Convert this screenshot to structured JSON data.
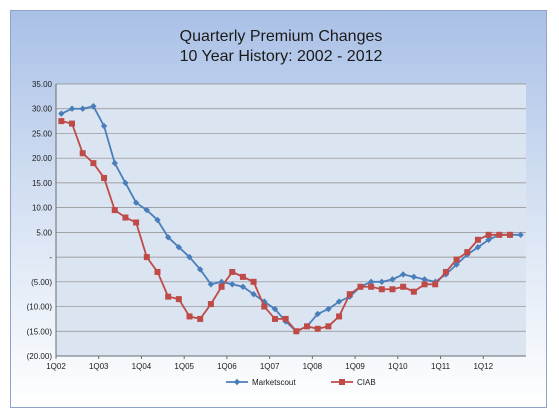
{
  "chart_data": {
    "type": "line",
    "title": "Quarterly Premium Changes",
    "subtitle": "10 Year History: 2002 - 2012",
    "xlabel": "",
    "ylabel": "",
    "ylim": [
      -20,
      35
    ],
    "yticks": [
      35,
      30,
      25,
      20,
      15,
      10,
      5,
      0,
      -5,
      -10,
      -15,
      -20
    ],
    "ytick_labels": [
      "35.00",
      "30.00",
      "25.00",
      "20.00",
      "15.00",
      "10.00",
      "5.00",
      "-",
      "(5.00)",
      "(10.00)",
      "(15.00)",
      "(20.00)"
    ],
    "xticks": [
      0,
      4,
      8,
      12,
      16,
      20,
      24,
      28,
      32,
      36,
      40
    ],
    "xtick_labels": [
      "1Q02",
      "1Q03",
      "1Q04",
      "1Q05",
      "1Q06",
      "1Q07",
      "1Q08",
      "1Q09",
      "1Q10",
      "1Q11",
      "1Q12"
    ],
    "xlim": [
      0,
      44
    ],
    "grid": true,
    "legend": "bottom",
    "series": [
      {
        "name": "Marketscout",
        "color": "#4a7ebb",
        "marker": "diamond",
        "values": [
          29,
          30,
          30,
          30.5,
          26.5,
          19,
          15,
          11,
          9.5,
          7.5,
          4,
          2,
          0,
          -2.5,
          -5.5,
          -5,
          -5.5,
          -6,
          -7.5,
          -9,
          -10.5,
          -13,
          -15,
          -14,
          -11.5,
          -10.5,
          -9,
          -8,
          -6,
          -5,
          -5,
          -4.5,
          -3.5,
          -4,
          -4.5,
          -5,
          -3.5,
          -1.5,
          0.5,
          2,
          3.5,
          4.5,
          4.5,
          4.5
        ]
      },
      {
        "name": "CIAB",
        "color": "#be4b48",
        "marker": "square",
        "values": [
          27.5,
          27,
          21,
          19,
          16,
          9.5,
          8,
          7,
          0,
          -3,
          -8,
          -8.5,
          -12,
          -12.5,
          -9.5,
          -6,
          -3,
          -4,
          -5,
          -10,
          -12.5,
          -12.5,
          -15,
          -14,
          -14.5,
          -14,
          -12,
          -7.5,
          -6,
          -6,
          -6.5,
          -6.5,
          -6,
          -7,
          -5.5,
          -5.5,
          -3,
          -0.5,
          1,
          3.5,
          4.5,
          4.5,
          4.5
        ]
      }
    ]
  }
}
